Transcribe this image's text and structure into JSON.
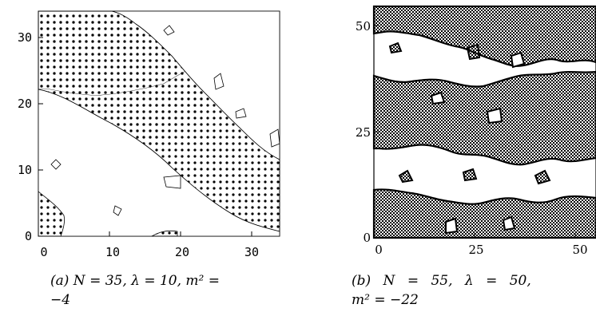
{
  "figure": {
    "panels": [
      {
        "id": "a",
        "caption_line1": "(a) N = 35, λ = 10, m² =",
        "caption_line2": "−4",
        "chart_data": {
          "type": "heatmap",
          "title": "",
          "xlabel": "",
          "ylabel": "",
          "xlim": [
            0,
            34
          ],
          "ylim": [
            0,
            34
          ],
          "x_ticks": [
            "0",
            "10",
            "20",
            "30"
          ],
          "y_ticks": [
            "0",
            "10",
            "20",
            "30"
          ],
          "grid": false,
          "description_of_fields": "dotted region = one phase, blank region = other phase; diagonal stripe domains"
        }
      },
      {
        "id": "b",
        "caption_line1": "(b) N = 55, λ = 50,",
        "caption_line2": "m² = −22",
        "chart_data": {
          "type": "heatmap",
          "title": "",
          "xlabel": "",
          "ylabel": "",
          "xlim": [
            0,
            54
          ],
          "ylim": [
            0,
            54
          ],
          "x_ticks": [
            "0",
            "25",
            "50"
          ],
          "y_ticks": [
            "0",
            "25",
            "50"
          ],
          "grid": false
        }
      }
    ]
  }
}
